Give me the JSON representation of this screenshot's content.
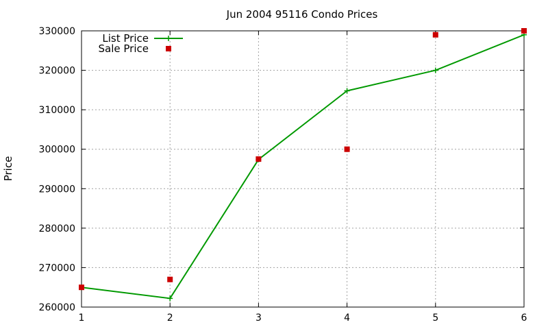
{
  "chart_data": {
    "type": "line",
    "title": "Jun 2004 95116 Condo Prices",
    "xlabel": "",
    "ylabel": "Price",
    "x": [
      1,
      2,
      3,
      4,
      5,
      6
    ],
    "xlim": [
      1,
      6
    ],
    "ylim": [
      260000,
      330000
    ],
    "xticks": [
      "1",
      "2",
      "3",
      "4",
      "5",
      "6"
    ],
    "yticks": [
      "260000",
      "270000",
      "280000",
      "290000",
      "300000",
      "310000",
      "320000",
      "330000"
    ],
    "grid": true,
    "legend_position": "top-left",
    "series": [
      {
        "name": "List Price",
        "style": "linespoints",
        "marker": "plus",
        "color": "#009900",
        "values": [
          265000,
          262200,
          297400,
          314800,
          320000,
          329000
        ]
      },
      {
        "name": "Sale Price",
        "style": "points",
        "marker": "square",
        "color": "#cc0000",
        "values": [
          265000,
          267000,
          297500,
          300000,
          329000,
          330000
        ]
      }
    ]
  }
}
